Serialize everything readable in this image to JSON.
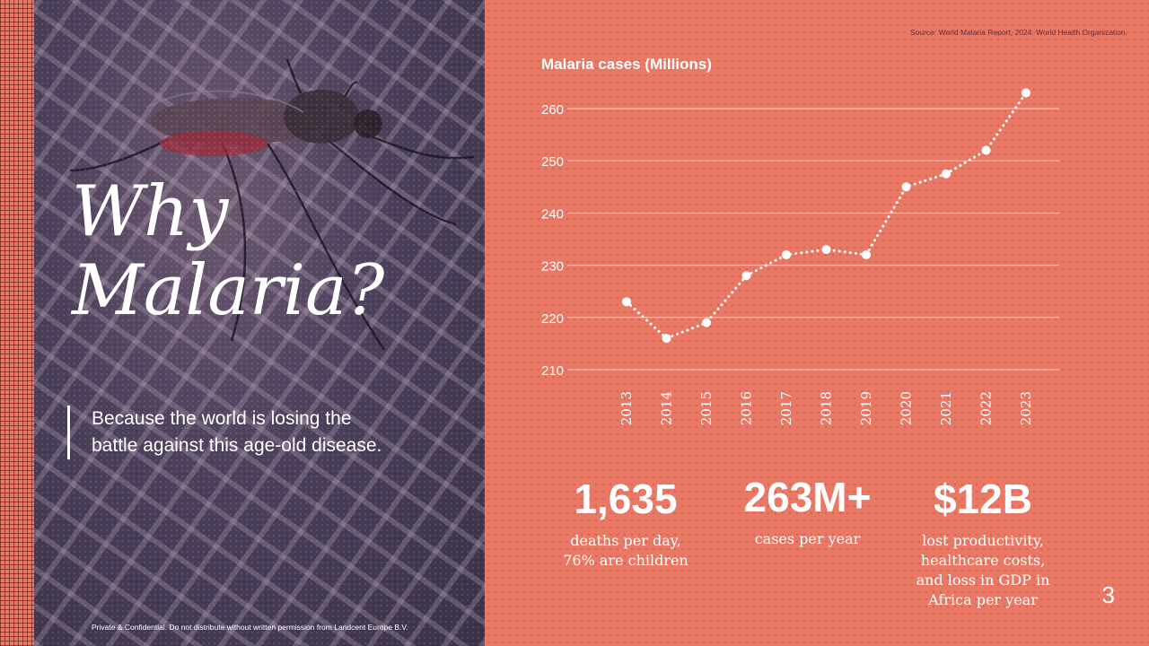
{
  "slide": {
    "title_line1": "Why",
    "title_line2": "Malaria?",
    "subtitle": "Because the world is losing the battle against this age-old disease.",
    "footer_note": "Private & Confidential. Do not distribute without written permission from Landcent Europe B.V.",
    "source": "Source: World Malaria Report, 2024. World Health Organization.",
    "page_number": "3"
  },
  "stats": [
    {
      "value": "1,635",
      "label_lines": [
        "deaths per day,",
        "76% are children"
      ]
    },
    {
      "value": "263M+",
      "label_lines": [
        "cases per year"
      ]
    },
    {
      "value": "$12B",
      "label_lines": [
        "lost productivity,",
        "healthcare costs,",
        "and loss in GDP in",
        "Africa per year"
      ]
    }
  ],
  "colors": {
    "background": "#e97865",
    "photo_tint": "#4b3f5a",
    "text": "#ffffff",
    "source_text": "#6a2c3a"
  },
  "chart_data": {
    "type": "line",
    "title": "Malaria cases (Millions)",
    "xlabel": "",
    "ylabel": "",
    "x": [
      "2013",
      "2014",
      "2015",
      "2016",
      "2017",
      "2018",
      "2019",
      "2020",
      "2021",
      "2022",
      "2023"
    ],
    "series": [
      {
        "values": [
          223,
          216,
          219,
          228,
          232,
          233,
          232,
          245,
          247.5,
          252,
          263
        ]
      }
    ],
    "yticks": [
      210,
      220,
      230,
      240,
      250,
      260
    ],
    "ylim": [
      210,
      263
    ],
    "grid": true,
    "line_style": "dotted",
    "legend": "none"
  }
}
